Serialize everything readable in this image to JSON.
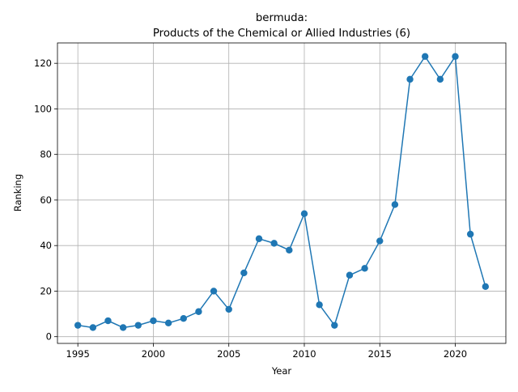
{
  "chart_data": {
    "type": "line",
    "title_line1": "bermuda:",
    "title_line2": "Products of the Chemical or Allied Industries (6)",
    "xlabel": "Year",
    "ylabel": "Ranking",
    "xlim": [
      1993.65,
      2023.35
    ],
    "ylim": [
      -2.95,
      128.95
    ],
    "xticks": [
      1995,
      2000,
      2005,
      2010,
      2015,
      2020
    ],
    "yticks": [
      0,
      20,
      40,
      60,
      80,
      100,
      120
    ],
    "grid": true,
    "line_color": "#1f77b4",
    "series": [
      {
        "x": [
          1995,
          1996,
          1997,
          1998,
          1999,
          2000,
          2001,
          2002,
          2003,
          2004,
          2005,
          2006,
          2007,
          2008,
          2009,
          2010,
          2011,
          2012,
          2013,
          2014,
          2015,
          2016,
          2017,
          2018,
          2019,
          2020,
          2021,
          2022
        ],
        "values": [
          5,
          4,
          7,
          4,
          5,
          7,
          6,
          8,
          11,
          20,
          12,
          28,
          43,
          41,
          38,
          54,
          14,
          5,
          27,
          30,
          42,
          58,
          113,
          123,
          113,
          123,
          45,
          22
        ]
      }
    ]
  }
}
